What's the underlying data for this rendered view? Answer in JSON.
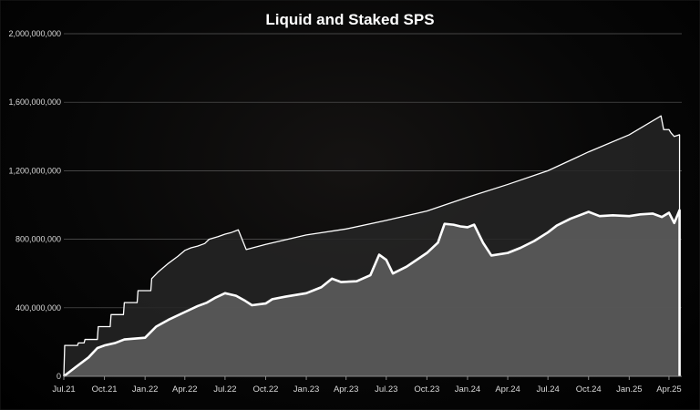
{
  "chart_data": {
    "type": "area",
    "title": "Liquid and Staked SPS",
    "xlabel": "",
    "ylabel": "",
    "ylim": [
      0,
      2000000000
    ],
    "y_ticks": [
      0,
      400000000,
      800000000,
      1200000000,
      1600000000,
      2000000000
    ],
    "y_tick_labels": [
      "0",
      "400,000,000",
      "800,000,000",
      "1,200,000,000",
      "1,600,000,000",
      "2,000,000,000"
    ],
    "x_ticks": [
      "2021-07-26",
      "2021-10-26",
      "2022-01-26",
      "2022-04-26",
      "2022-07-26",
      "2022-10-26",
      "2023-01-26",
      "2023-04-26",
      "2023-07-26",
      "2023-10-26",
      "2024-01-26",
      "2024-04-26",
      "2024-07-26",
      "2024-10-26",
      "2025-01-26",
      "2025-04-26"
    ],
    "x_tick_labels": [
      "Jul.21",
      "Oct.21",
      "Jan.22",
      "Apr.22",
      "Jul.22",
      "Oct.22",
      "Jan.23",
      "Apr.23",
      "Jul.23",
      "Oct.23",
      "Jan.24",
      "Apr.24",
      "Jul.24",
      "Oct.24",
      "Jan.25",
      "Apr.25"
    ],
    "grid": true,
    "legend": "none",
    "series": [
      {
        "color": "#ffffff",
        "fill": "#262626",
        "points": [
          [
            "2021-07-26",
            0
          ],
          [
            "2021-07-28",
            180000000
          ],
          [
            "2021-08-26",
            180000000
          ],
          [
            "2021-08-28",
            195000000
          ],
          [
            "2021-09-10",
            195000000
          ],
          [
            "2021-09-12",
            215000000
          ],
          [
            "2021-10-10",
            215000000
          ],
          [
            "2021-10-12",
            290000000
          ],
          [
            "2021-11-08",
            290000000
          ],
          [
            "2021-11-10",
            360000000
          ],
          [
            "2021-12-08",
            360000000
          ],
          [
            "2021-12-10",
            430000000
          ],
          [
            "2022-01-08",
            430000000
          ],
          [
            "2022-01-10",
            500000000
          ],
          [
            "2022-02-08",
            500000000
          ],
          [
            "2022-02-10",
            570000000
          ],
          [
            "2022-02-25",
            610000000
          ],
          [
            "2022-03-20",
            660000000
          ],
          [
            "2022-04-10",
            700000000
          ],
          [
            "2022-04-26",
            735000000
          ],
          [
            "2022-05-10",
            750000000
          ],
          [
            "2022-05-25",
            760000000
          ],
          [
            "2022-06-10",
            775000000
          ],
          [
            "2022-06-20",
            800000000
          ],
          [
            "2022-07-10",
            815000000
          ],
          [
            "2022-07-26",
            830000000
          ],
          [
            "2022-08-10",
            840000000
          ],
          [
            "2022-08-25",
            855000000
          ],
          [
            "2022-09-12",
            740000000
          ],
          [
            "2022-10-26",
            770000000
          ],
          [
            "2023-01-26",
            825000000
          ],
          [
            "2023-04-26",
            860000000
          ],
          [
            "2023-07-26",
            910000000
          ],
          [
            "2023-10-26",
            965000000
          ],
          [
            "2024-01-26",
            1045000000
          ],
          [
            "2024-04-26",
            1120000000
          ],
          [
            "2024-07-26",
            1200000000
          ],
          [
            "2024-10-26",
            1310000000
          ],
          [
            "2025-01-26",
            1410000000
          ],
          [
            "2025-04-08",
            1520000000
          ],
          [
            "2025-04-14",
            1440000000
          ],
          [
            "2025-04-26",
            1440000000
          ],
          [
            "2025-05-01",
            1420000000
          ],
          [
            "2025-05-08",
            1400000000
          ],
          [
            "2025-05-20",
            1410000000
          ]
        ]
      },
      {
        "color": "#ffffff",
        "fill": "#5b5b5b",
        "points": [
          [
            "2021-07-26",
            0
          ],
          [
            "2021-08-20",
            50000000
          ],
          [
            "2021-09-20",
            110000000
          ],
          [
            "2021-10-10",
            165000000
          ],
          [
            "2021-10-26",
            180000000
          ],
          [
            "2021-11-20",
            195000000
          ],
          [
            "2021-12-10",
            215000000
          ],
          [
            "2022-01-26",
            225000000
          ],
          [
            "2022-02-20",
            290000000
          ],
          [
            "2022-03-20",
            330000000
          ],
          [
            "2022-04-26",
            375000000
          ],
          [
            "2022-05-25",
            410000000
          ],
          [
            "2022-06-15",
            430000000
          ],
          [
            "2022-07-05",
            460000000
          ],
          [
            "2022-07-26",
            485000000
          ],
          [
            "2022-08-20",
            470000000
          ],
          [
            "2022-09-10",
            440000000
          ],
          [
            "2022-09-25",
            415000000
          ],
          [
            "2022-10-26",
            425000000
          ],
          [
            "2022-11-10",
            450000000
          ],
          [
            "2022-12-10",
            465000000
          ],
          [
            "2023-01-26",
            485000000
          ],
          [
            "2023-03-01",
            520000000
          ],
          [
            "2023-03-25",
            570000000
          ],
          [
            "2023-04-15",
            550000000
          ],
          [
            "2023-05-20",
            555000000
          ],
          [
            "2023-06-20",
            590000000
          ],
          [
            "2023-07-10",
            710000000
          ],
          [
            "2023-07-26",
            680000000
          ],
          [
            "2023-08-10",
            600000000
          ],
          [
            "2023-09-10",
            640000000
          ],
          [
            "2023-10-26",
            720000000
          ],
          [
            "2023-11-20",
            780000000
          ],
          [
            "2023-12-05",
            890000000
          ],
          [
            "2023-12-25",
            885000000
          ],
          [
            "2024-01-10",
            875000000
          ],
          [
            "2024-01-26",
            870000000
          ],
          [
            "2024-02-10",
            885000000
          ],
          [
            "2024-03-01",
            780000000
          ],
          [
            "2024-03-20",
            705000000
          ],
          [
            "2024-04-26",
            720000000
          ],
          [
            "2024-05-25",
            750000000
          ],
          [
            "2024-06-25",
            790000000
          ],
          [
            "2024-07-26",
            840000000
          ],
          [
            "2024-08-15",
            880000000
          ],
          [
            "2024-09-15",
            920000000
          ],
          [
            "2024-10-26",
            960000000
          ],
          [
            "2024-11-20",
            935000000
          ],
          [
            "2024-12-20",
            940000000
          ],
          [
            "2025-01-26",
            935000000
          ],
          [
            "2025-02-20",
            945000000
          ],
          [
            "2025-03-20",
            950000000
          ],
          [
            "2025-04-10",
            930000000
          ],
          [
            "2025-04-26",
            955000000
          ],
          [
            "2025-05-08",
            895000000
          ],
          [
            "2025-05-20",
            970000000
          ]
        ]
      }
    ]
  }
}
